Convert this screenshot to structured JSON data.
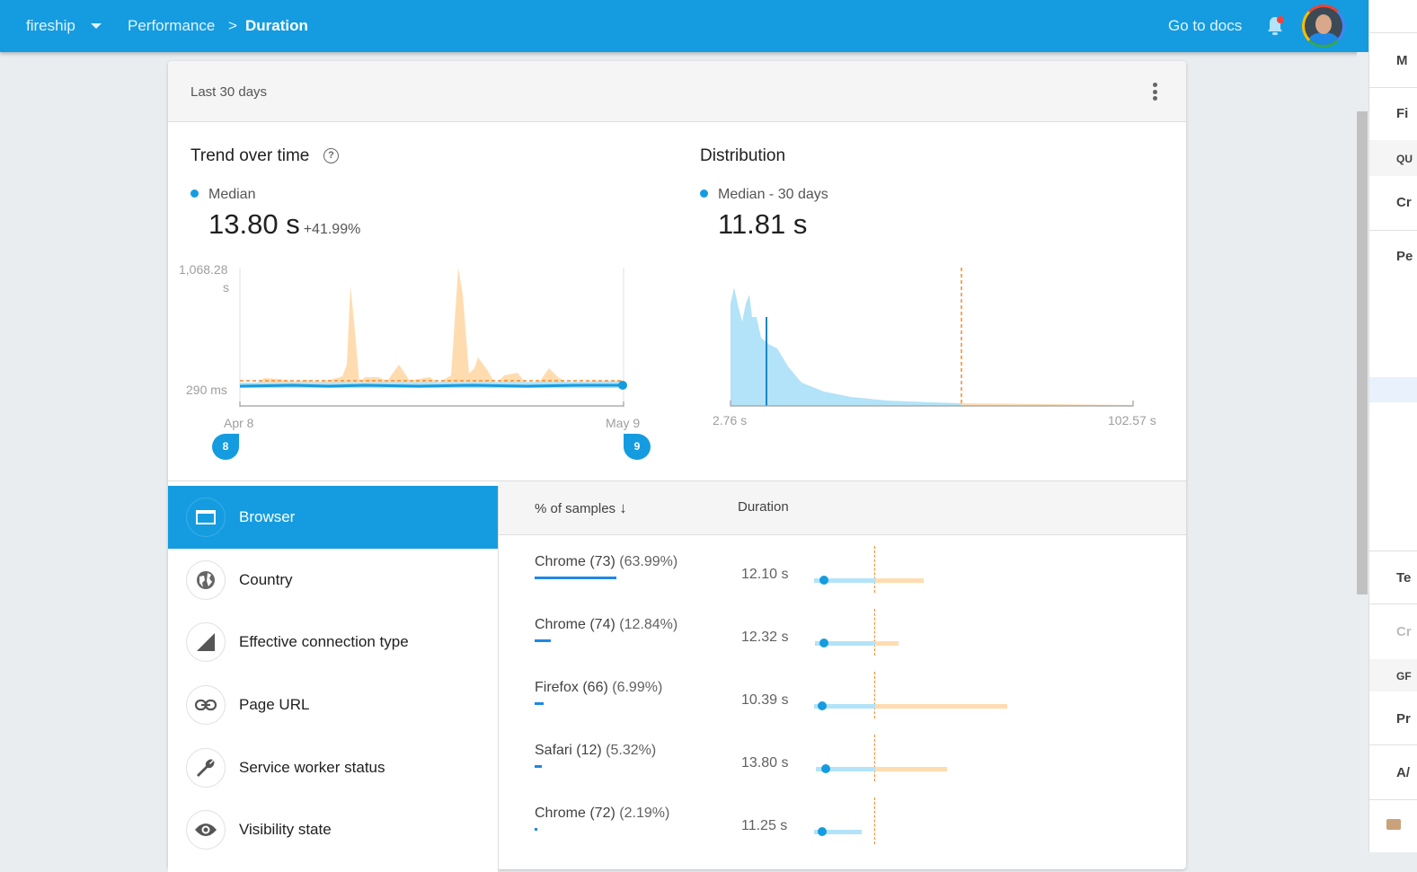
{
  "topbar": {
    "project": "fireship",
    "breadcrumb": [
      "Performance",
      "Duration"
    ],
    "separator": ">",
    "docs_link": "Go to docs"
  },
  "card": {
    "range": "Last 30 days",
    "trend": {
      "title": "Trend over time",
      "help": "?",
      "legend": "Median",
      "value": "13.80 s",
      "change": "+41.99%",
      "y_top": "1,068.28",
      "y_top_unit": "s",
      "y_bottom": "290 ms",
      "x_start": "Apr 8",
      "x_end": "May 9",
      "pin_start": "8",
      "pin_end": "9"
    },
    "distribution": {
      "title": "Distribution",
      "legend": "Median - 30 days",
      "value": "11.81 s",
      "x_min": "2.76 s",
      "x_max": "102.57 s"
    }
  },
  "dimensions": [
    {
      "label": "Browser",
      "icon": "browser-window-icon",
      "selected": true
    },
    {
      "label": "Country",
      "icon": "globe-icon"
    },
    {
      "label": "Effective connection type",
      "icon": "signal-icon"
    },
    {
      "label": "Page URL",
      "icon": "link-icon"
    },
    {
      "label": "Service worker status",
      "icon": "wrench-icon"
    },
    {
      "label": "Visibility state",
      "icon": "eye-icon"
    }
  ],
  "table": {
    "headers": {
      "samples": "% of samples",
      "duration": "Duration"
    },
    "rows": [
      {
        "name": "Chrome (73)",
        "pct": "(63.99%)",
        "share": 63.99,
        "duration": "12.10 s"
      },
      {
        "name": "Chrome (74)",
        "pct": "(12.84%)",
        "share": 12.84,
        "duration": "12.32 s"
      },
      {
        "name": "Firefox (66)",
        "pct": "(6.99%)",
        "share": 6.99,
        "duration": "10.39 s"
      },
      {
        "name": "Safari (12)",
        "pct": "(5.32%)",
        "share": 5.32,
        "duration": "13.80 s"
      },
      {
        "name": "Chrome (72)",
        "pct": "(2.19%)",
        "share": 2.19,
        "duration": "11.25 s"
      }
    ]
  },
  "right_panel": {
    "items": [
      "M",
      "Fi",
      "QU",
      "Cr",
      "Pe",
      "Te",
      "Cr",
      "GF",
      "Pr",
      "A/"
    ]
  },
  "colors": {
    "brand": "#159ce0",
    "p75": "#ffdcb0",
    "threshold": "#f5892a",
    "distribution": "#b3e3f8"
  }
}
